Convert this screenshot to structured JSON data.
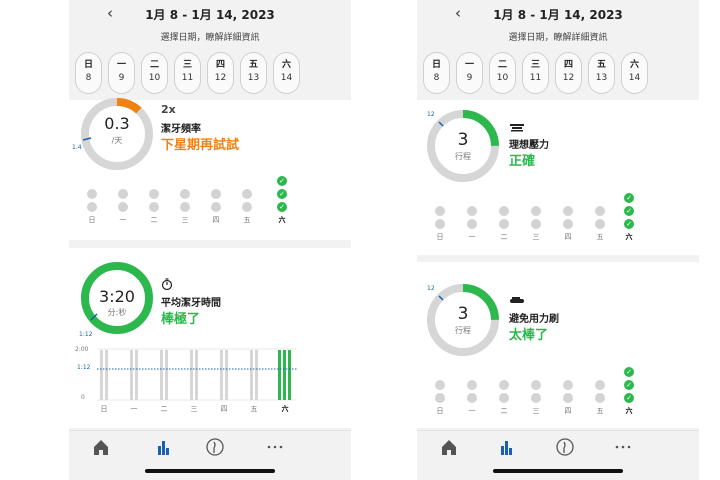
{
  "screens": [
    {
      "header": {
        "back_glyph": "‹",
        "date_range": "1月 8 - 1月 14, 2023",
        "hint": "選擇日期，瞭解詳細資訊"
      },
      "days": [
        {
          "wd": "日",
          "num": "8"
        },
        {
          "wd": "一",
          "num": "9"
        },
        {
          "wd": "二",
          "num": "10"
        },
        {
          "wd": "三",
          "num": "11"
        },
        {
          "wd": "四",
          "num": "12"
        },
        {
          "wd": "五",
          "num": "13"
        },
        {
          "wd": "六",
          "num": "14"
        }
      ],
      "weekday_labels": [
        "日",
        "一",
        "二",
        "三",
        "四",
        "五",
        "六"
      ],
      "metrics": [
        {
          "gauge_value": "0.3",
          "gauge_unit": "/天",
          "gauge_marker": "1.4",
          "gauge_progress": 0.12,
          "icon": "brushing-frequency-icon",
          "icon_text": "2x",
          "label": "潔牙頻率",
          "status": "下星期再試試",
          "status_color": "#f08214"
        },
        {
          "gauge_value": "3:20",
          "gauge_unit": "分:秒",
          "gauge_marker": "1:12",
          "gauge_progress": 1.0,
          "icon": "timer-icon",
          "label": "平均潔牙時間",
          "status": "棒極了",
          "status_color": "#2db84d",
          "chart_axis": [
            "2:00",
            "1:12",
            "0"
          ]
        }
      ]
    },
    {
      "header": {
        "back_glyph": "‹",
        "date_range": "1月 8 - 1月 14, 2023",
        "hint": "選擇日期，瞭解詳細資訊"
      },
      "days": [
        {
          "wd": "日",
          "num": "8"
        },
        {
          "wd": "一",
          "num": "9"
        },
        {
          "wd": "二",
          "num": "10"
        },
        {
          "wd": "三",
          "num": "11"
        },
        {
          "wd": "四",
          "num": "12"
        },
        {
          "wd": "五",
          "num": "13"
        },
        {
          "wd": "六",
          "num": "14"
        }
      ],
      "weekday_labels": [
        "日",
        "一",
        "二",
        "三",
        "四",
        "五",
        "六"
      ],
      "metrics": [
        {
          "gauge_value": "3",
          "gauge_unit": "行程",
          "gauge_marker": "12",
          "gauge_progress": 0.25,
          "icon": "brush-pressure-icon",
          "label": "理想壓力",
          "status": "正確",
          "status_color": "#2db84d"
        },
        {
          "gauge_value": "3",
          "gauge_unit": "行程",
          "gauge_marker": "12",
          "gauge_progress": 0.25,
          "icon": "scrubbing-icon",
          "label": "避免用力刷",
          "status": "太棒了",
          "status_color": "#2db84d"
        }
      ]
    }
  ],
  "tabs": [
    "home-icon",
    "stats-icon",
    "brush-head-icon",
    "more-icon"
  ],
  "colors": {
    "accent": "#2db84d",
    "warning": "#f08214",
    "active_tab": "#1a5fb4",
    "inactive": "#d3d3d3"
  }
}
